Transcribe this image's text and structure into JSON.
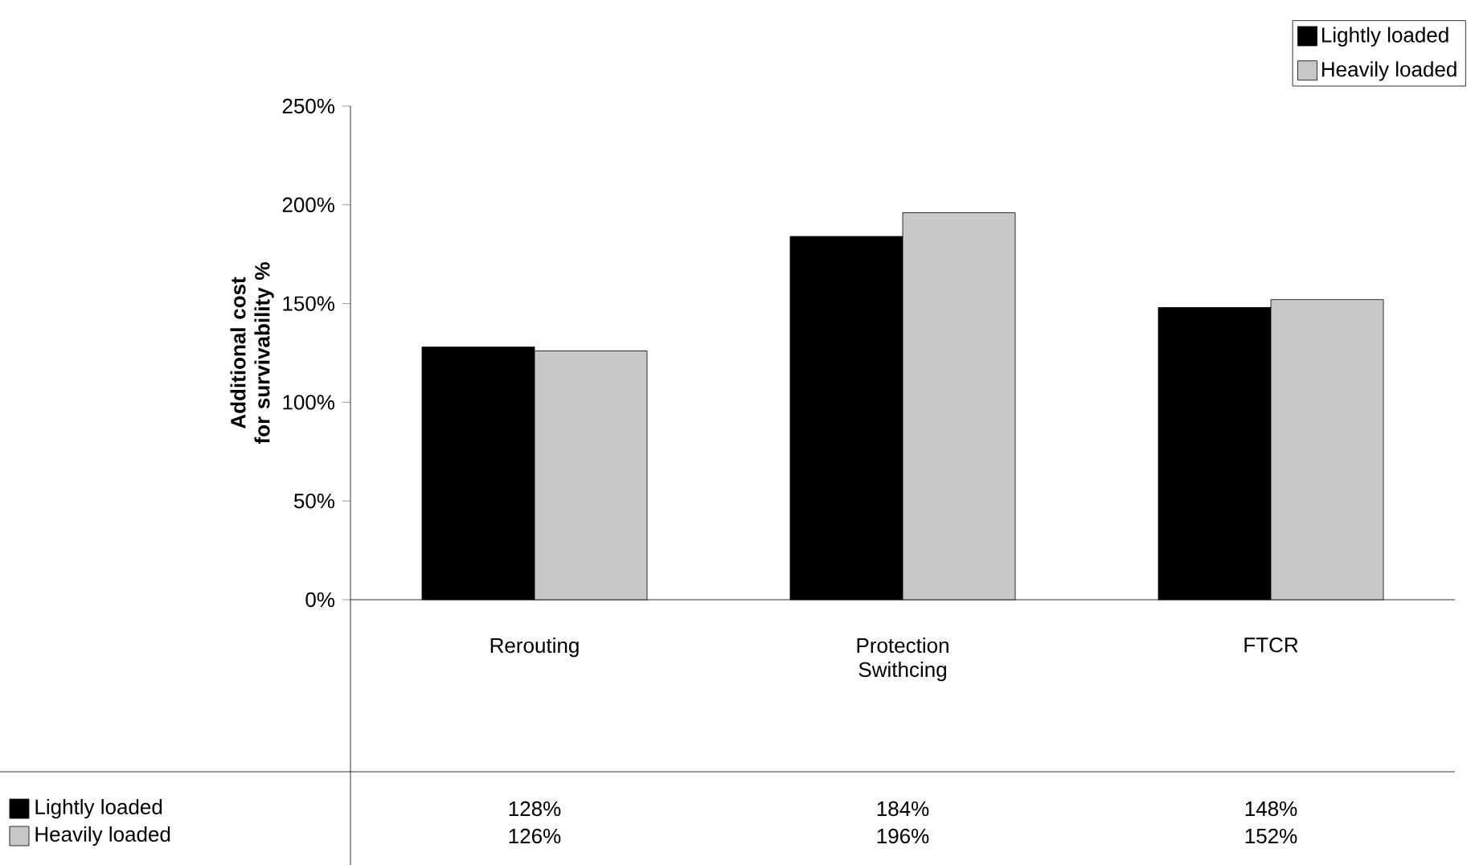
{
  "chart_data": {
    "type": "bar",
    "ylabel": "Additional cost for survivability %",
    "categories": [
      "Rerouting",
      "Protection Swithcing",
      "FTCR"
    ],
    "series": [
      {
        "name": "Lightly loaded",
        "color": "#000000",
        "values": [
          128,
          184,
          148
        ],
        "value_labels": [
          "128%",
          "184%",
          "148%"
        ]
      },
      {
        "name": "Heavily loaded",
        "color": "#c8c8c8",
        "values": [
          126,
          196,
          152
        ],
        "value_labels": [
          "126%",
          "196%",
          "152%"
        ]
      }
    ],
    "ylim": [
      0,
      250
    ],
    "yticks": [
      {
        "value": 0,
        "label": "0%"
      },
      {
        "value": 50,
        "label": "50%"
      },
      {
        "value": 100,
        "label": "100%"
      },
      {
        "value": 150,
        "label": "150%"
      },
      {
        "value": 200,
        "label": "200%"
      },
      {
        "value": 250,
        "label": "250%"
      }
    ],
    "grid": false,
    "legend": "top right"
  }
}
